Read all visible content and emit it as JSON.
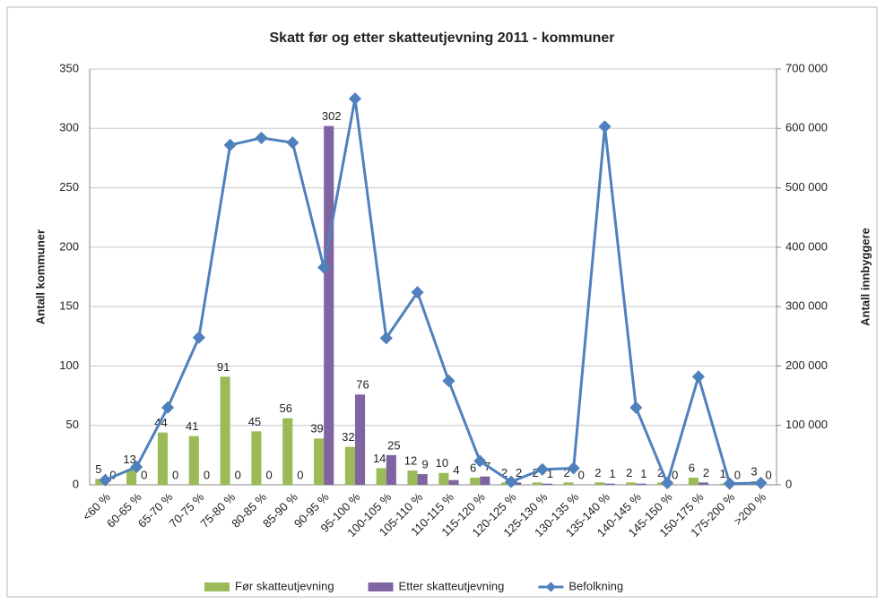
{
  "chart_data": {
    "type": "bar-line",
    "title": "Skatt før og etter skatteutjevning 2011 - kommuner",
    "ylabel": "Antall kommuner",
    "y2label": "Antall innbyggere",
    "categories": [
      "<60 %",
      "60-65 %",
      "65-70 %",
      "70-75 %",
      "75-80 %",
      "80-85 %",
      "85-90 %",
      "90-95 %",
      "95-100 %",
      "100-105 %",
      "105-110 %",
      "110-115 %",
      "115-120 %",
      "120-125 %",
      "125-130 %",
      "130-135 %",
      "135-140 %",
      "140-145 %",
      "145-150 %",
      "150-175 %",
      "175-200 %",
      ">200 %"
    ],
    "series": [
      {
        "name": "Før skatteutjevning",
        "color": "#9bbb59",
        "type": "bar",
        "values": [
          5,
          13,
          44,
          41,
          91,
          45,
          56,
          39,
          32,
          14,
          12,
          10,
          6,
          2,
          2,
          2,
          2,
          2,
          2,
          6,
          1,
          3
        ]
      },
      {
        "name": "Etter skatteutjevning",
        "color": "#8064a2",
        "type": "bar",
        "values": [
          0,
          0,
          0,
          0,
          0,
          0,
          0,
          302,
          76,
          25,
          9,
          4,
          7,
          2,
          1,
          0,
          1,
          1,
          0,
          2,
          0,
          0
        ]
      },
      {
        "name": "Befolkning",
        "color": "#4f81bd",
        "type": "line",
        "axis": "y2",
        "values": [
          8000,
          30000,
          130000,
          248000,
          572000,
          584000,
          576000,
          366000,
          650000,
          247000,
          324000,
          175000,
          40000,
          5000,
          26000,
          28000,
          603000,
          130000,
          3000,
          182000,
          2000,
          3000
        ]
      }
    ],
    "ylim": [
      0,
      350
    ],
    "yticks": [
      0,
      50,
      100,
      150,
      200,
      250,
      300,
      350
    ],
    "y2lim": [
      0,
      700000
    ],
    "y2ticks": [
      0,
      {
        "value": 100000,
        "label": "100 000"
      },
      {
        "value": 200000,
        "label": "200 000"
      },
      {
        "value": 300000,
        "label": "300 000"
      },
      {
        "value": 400000,
        "label": "400 000"
      },
      {
        "value": 500000,
        "label": "500 000"
      },
      {
        "value": 600000,
        "label": "600 000"
      },
      {
        "value": 700000,
        "label": "700 000"
      }
    ],
    "grid": true,
    "legend": "bottom"
  }
}
